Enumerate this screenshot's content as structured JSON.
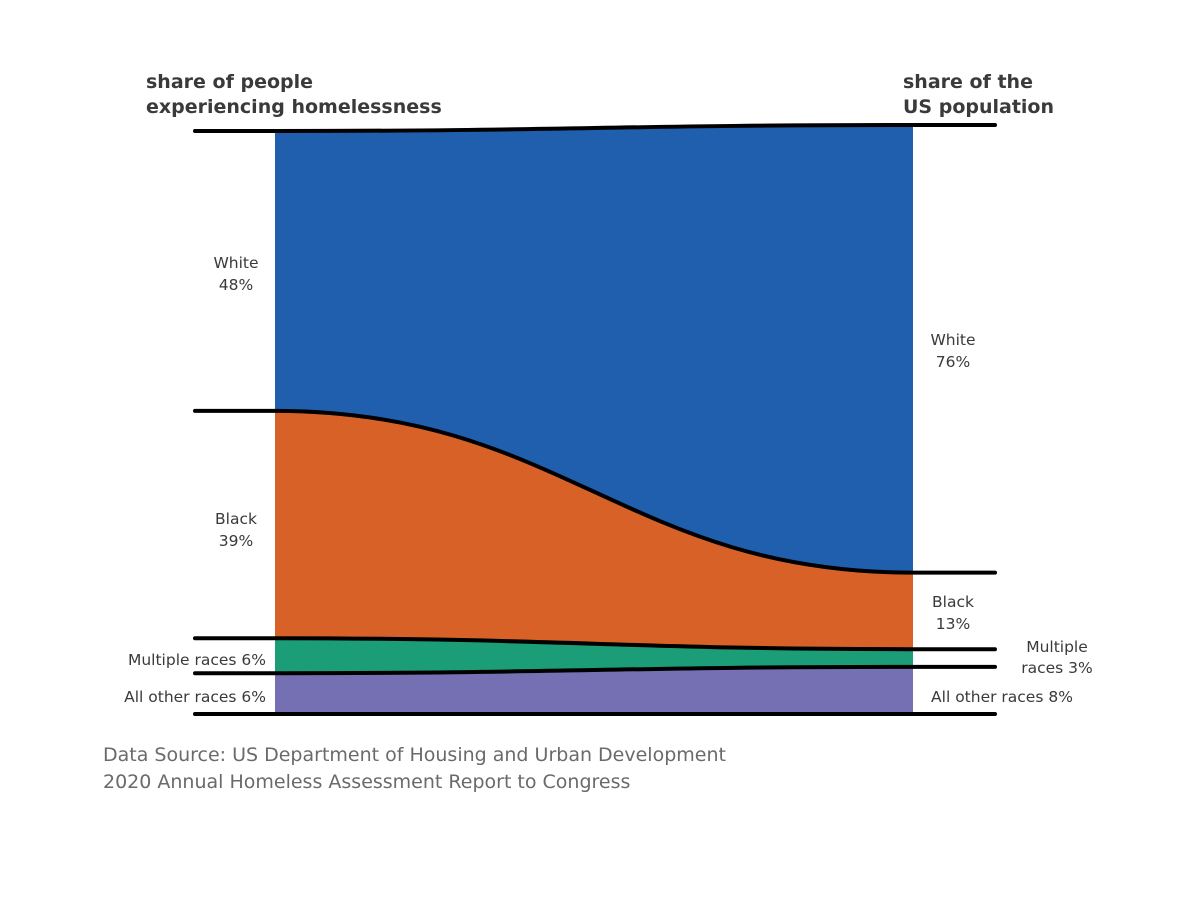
{
  "chart_data": {
    "type": "area",
    "subtype": "slope-ribbon",
    "left_axis_title": [
      "share of people",
      "experiencing homelessness"
    ],
    "right_axis_title": [
      "share of the",
      "US population"
    ],
    "categories": [
      "White",
      "Black",
      "Multiple races",
      "All other races"
    ],
    "series": [
      {
        "name": "White",
        "left": 48,
        "right": 76,
        "color": "#1f5fad",
        "left_label": [
          "White",
          "48%"
        ],
        "right_label": [
          "White",
          "76%"
        ]
      },
      {
        "name": "Black",
        "left": 39,
        "right": 13,
        "color": "#d86128",
        "left_label": [
          "Black",
          "39%"
        ],
        "right_label": [
          "Black",
          "13%"
        ]
      },
      {
        "name": "Multiple races",
        "left": 6,
        "right": 3,
        "color": "#1b9e77",
        "left_label": [
          "Multiple races 6%"
        ],
        "right_label": [
          "Multiple",
          "races 3%"
        ]
      },
      {
        "name": "All other races",
        "left": 6,
        "right": 8,
        "color": "#7570b3",
        "left_label": [
          "All other races 6%"
        ],
        "right_label": [
          "All other races 8%"
        ]
      }
    ],
    "ylim": [
      0,
      100
    ],
    "source": [
      "Data Source: US Department of Housing and Urban Development",
      "2020 Annual Homeless Assessment Report to Congress"
    ]
  }
}
